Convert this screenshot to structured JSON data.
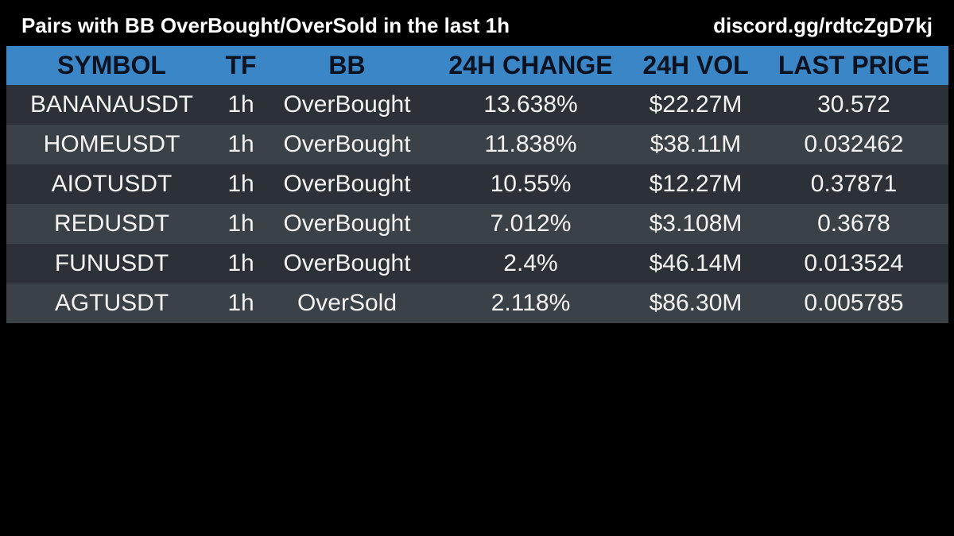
{
  "header": {
    "title": "Pairs with BB OverBought/OverSold in the last 1h",
    "link": "discord.gg/rdtcZgD7kj"
  },
  "table": {
    "columns": [
      "SYMBOL",
      "TF",
      "BB",
      "24H CHANGE",
      "24H VOL",
      "LAST PRICE"
    ],
    "rows": [
      [
        "BANANAUSDT",
        "1h",
        "OverBought",
        "13.638%",
        "$22.27M",
        "30.572"
      ],
      [
        "HOMEUSDT",
        "1h",
        "OverBought",
        "11.838%",
        "$38.11M",
        "0.032462"
      ],
      [
        "AIOTUSDT",
        "1h",
        "OverBought",
        "10.55%",
        "$12.27M",
        "0.37871"
      ],
      [
        "REDUSDT",
        "1h",
        "OverBought",
        "7.012%",
        "$3.108M",
        "0.3678"
      ],
      [
        "FUNUSDT",
        "1h",
        "OverBought",
        "2.4%",
        "$46.14M",
        "0.013524"
      ],
      [
        "AGTUSDT",
        "1h",
        "OverSold",
        "2.118%",
        "$86.30M",
        "0.005785"
      ]
    ]
  },
  "colors": {
    "background": "#000000",
    "header_row": "#3a86c6",
    "row_dark": "#2b3136",
    "row_light": "#3a4147"
  }
}
